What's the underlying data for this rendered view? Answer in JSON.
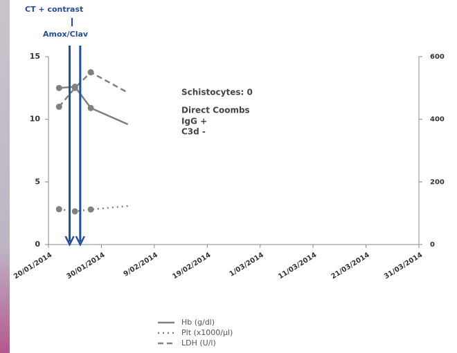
{
  "chart_data": {
    "type": "line",
    "x": [
      "22/01/2014",
      "25/01/2014",
      "28/01/2014",
      "4/02/2014"
    ],
    "series": [
      {
        "name": "Hb (g/dl)",
        "color": "#808080",
        "dash": "solid",
        "values": [
          12.5,
          12.6,
          10.9,
          9.6
        ]
      },
      {
        "name": "Plt (x1000/µl)",
        "color": "#808080",
        "dash": "dotted",
        "axis": "y2",
        "values": [
          113,
          106,
          112,
          123
        ]
      },
      {
        "name": "LDH (U/l)",
        "color": "#808080",
        "dash": "dashed",
        "axis": "y2",
        "values": [
          440,
          500,
          550,
          485
        ]
      }
    ],
    "xlim": [
      "20/01/2014",
      "31/03/2014"
    ],
    "xticks": [
      "20/01/2014",
      "30/01/2014",
      "9/02/2014",
      "19/02/2014",
      "1/03/2014",
      "11/03/2014",
      "21/03/2014",
      "31/03/2014"
    ],
    "ylim": [
      0,
      15
    ],
    "yticks": [
      0,
      5,
      10,
      15
    ],
    "y2lim": [
      0,
      600
    ],
    "y2ticks": [
      0,
      200,
      400,
      600
    ],
    "events": [
      {
        "x": "24/01/2014",
        "label": "CT + contrast",
        "color": "#1f4e9c"
      },
      {
        "x": "26/01/2014",
        "label": "Amox/Clav",
        "color": "#1f4e9c"
      }
    ],
    "annotations": [
      "Schistocytes: 0",
      "Direct Coombs",
      "IgG +",
      "C3d -"
    ],
    "legend": "bottom"
  }
}
